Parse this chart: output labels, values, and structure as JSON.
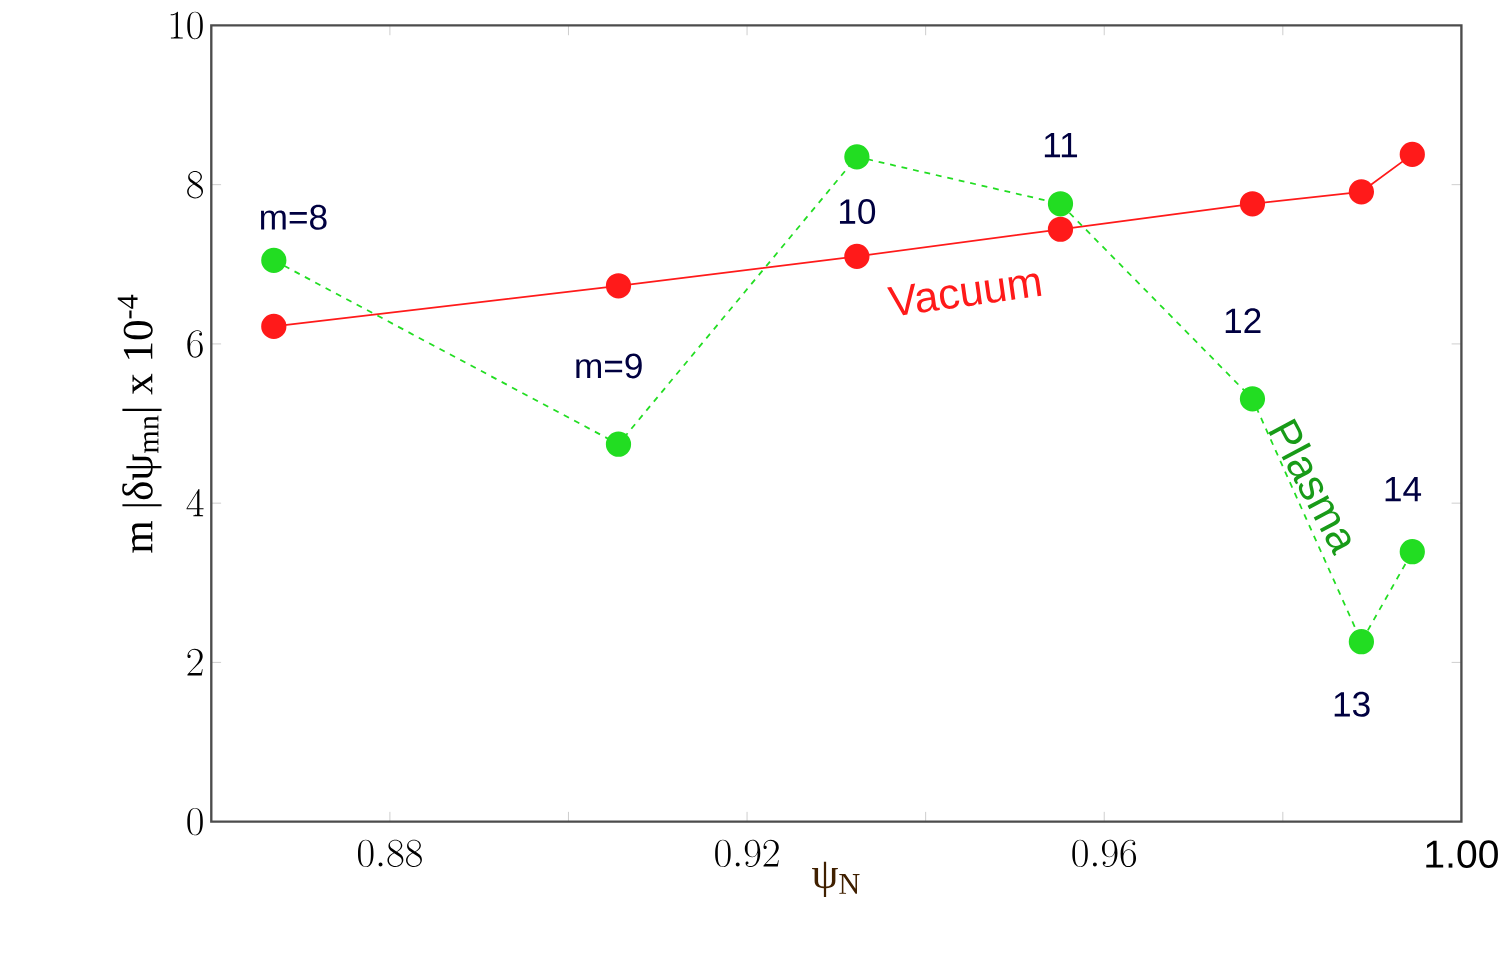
{
  "chart_data": {
    "type": "line",
    "xlabel": "ψ$_{N}$",
    "ylabel": "m |δψ$_{mn}$| x 10$^{-4}$",
    "x": [
      0.867,
      0.9056,
      0.9323,
      0.9551,
      0.9766,
      0.9888,
      0.9945
    ],
    "series": [
      {
        "name": "Vacuum",
        "color": "#ff1a1a",
        "line_style": "solid",
        "values": [
          6.22,
          6.73,
          7.1,
          7.44,
          7.76,
          7.91,
          8.38
        ]
      },
      {
        "name": "Plasma",
        "color": "#22dd22",
        "line_style": "dashed",
        "values": [
          7.05,
          4.74,
          8.35,
          7.76,
          5.31,
          2.26,
          3.39
        ]
      }
    ],
    "xlim": [
      0.86,
      1.0
    ],
    "xticks": [
      0.88,
      {
        "value": 0.9,
        "label": null
      },
      0.92,
      {
        "value": 0.94,
        "label": null
      },
      0.96,
      {
        "value": 0.98,
        "label": null
      },
      {
        "value": 1.0,
        "label": "1.00"
      }
    ],
    "ylim": [
      0,
      10
    ],
    "yticks": [
      0,
      2,
      4,
      6,
      8,
      10
    ],
    "marker": "circle",
    "legend": false,
    "annotations": [
      {
        "text": "m=8",
        "x": 0.867,
        "y": 7.05
      },
      {
        "text": "m=9",
        "x": 0.9056,
        "y": 4.74
      },
      {
        "text": "10",
        "x": 0.9323,
        "y": 8.35
      },
      {
        "text": "11",
        "x": 0.9551,
        "y": 7.76
      },
      {
        "text": "12",
        "x": 0.9766,
        "y": 5.31
      },
      {
        "text": "13",
        "x": 0.9888,
        "y": 2.26
      },
      {
        "text": "14",
        "x": 0.9945,
        "y": 3.39
      }
    ]
  }
}
